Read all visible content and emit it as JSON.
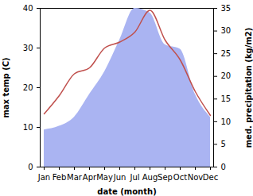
{
  "chart_data": {
    "type": "line",
    "xlabel": "date (month)",
    "ylabel": "max temp (C)",
    "y2label": "med. precipitation (kg/m2)",
    "categories": [
      "Jan",
      "Feb",
      "Mar",
      "Apr",
      "May",
      "Jun",
      "Jul",
      "Aug",
      "Sep",
      "Oct",
      "Nov",
      "Dec"
    ],
    "series": [
      {
        "name": "med. precipitation (kg/m2)",
        "type": "area",
        "axis": "y2",
        "color": "#aab4f2",
        "values": [
          8.2,
          9,
          11,
          16,
          21,
          28,
          35,
          34,
          27,
          26,
          16,
          11
        ]
      },
      {
        "name": "max temp (C)",
        "type": "line",
        "color": "#c0504d",
        "values": [
          13.4,
          18,
          23.5,
          25,
          30,
          31.5,
          34,
          39.5,
          32,
          27,
          19,
          13
        ]
      }
    ],
    "ylim": [
      0,
      40
    ],
    "yticks": [
      0,
      10,
      20,
      30,
      40
    ],
    "y2lim": [
      0,
      35
    ],
    "y2ticks": [
      0,
      5,
      10,
      15,
      20,
      25,
      30,
      35
    ]
  }
}
